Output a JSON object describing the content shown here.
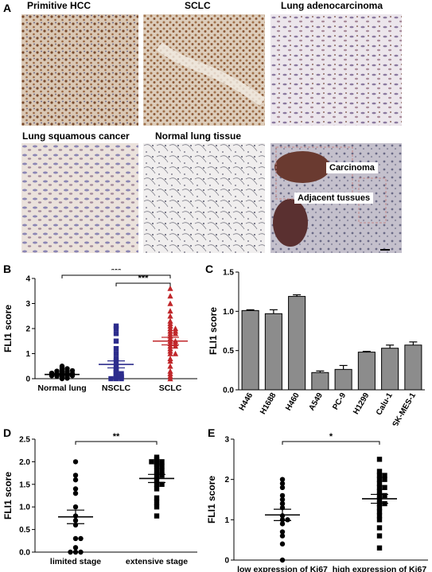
{
  "panels": {
    "a": "A",
    "b": "B",
    "c": "C",
    "d": "D",
    "e": "E"
  },
  "images": {
    "titles": [
      "Primitive HCC",
      "SCLC",
      "Lung adenocarcinoma",
      "Lung squamous cancer",
      "Normal lung tissue"
    ],
    "carcinoma_label": "Carcinoma",
    "adjacent_label": "Adjacent tussues"
  },
  "colors": {
    "red": "#c0262a",
    "navy": "#2c2c8c",
    "black": "#000000",
    "bar_gray": "#8c8c8c"
  },
  "chart_data": [
    {
      "id": "B",
      "type": "scatter",
      "ylabel": "FLI1 score",
      "ylim": [
        0,
        4
      ],
      "yticks": [
        "0",
        "1",
        "2",
        "3",
        "4"
      ],
      "categories": [
        "Normal lung",
        "NSCLC",
        "SCLC"
      ],
      "significance": [
        {
          "from": "Normal lung",
          "to": "SCLC",
          "label": "***"
        },
        {
          "from": "NSCLC",
          "to": "SCLC",
          "label": "***"
        }
      ],
      "groups": [
        {
          "category": "Normal lung",
          "marker": "circle",
          "color": "#000000",
          "mean": 0.17,
          "sem": 0.03,
          "values": [
            0.0,
            0.02,
            0.05,
            0.05,
            0.08,
            0.1,
            0.1,
            0.12,
            0.12,
            0.15,
            0.15,
            0.15,
            0.18,
            0.18,
            0.2,
            0.2,
            0.22,
            0.25,
            0.25,
            0.28,
            0.3,
            0.3,
            0.32,
            0.35,
            0.38,
            0.4,
            0.45,
            0.5
          ]
        },
        {
          "category": "NSCLC",
          "marker": "square",
          "color": "#2c2c8c",
          "mean": 0.57,
          "sem": 0.14,
          "values": [
            0.0,
            0.0,
            0.0,
            0.05,
            0.05,
            0.1,
            0.1,
            0.15,
            0.2,
            0.2,
            0.25,
            0.3,
            0.35,
            0.4,
            0.5,
            0.7,
            0.8,
            1.0,
            1.2,
            1.5,
            1.8,
            2.0,
            2.1
          ]
        },
        {
          "category": "SCLC",
          "marker": "triangle",
          "color": "#c0262a",
          "mean": 1.5,
          "sem": 0.15,
          "values": [
            0.0,
            0.1,
            0.2,
            0.3,
            0.5,
            0.7,
            0.8,
            1.0,
            1.0,
            1.1,
            1.2,
            1.3,
            1.3,
            1.4,
            1.4,
            1.5,
            1.5,
            1.6,
            1.7,
            1.8,
            1.8,
            1.9,
            1.9,
            2.0,
            2.0,
            2.1,
            2.2,
            2.3,
            2.5,
            2.7,
            3.0,
            3.3,
            3.6
          ]
        }
      ]
    },
    {
      "id": "C",
      "type": "bar",
      "ylabel": "FLI1  score",
      "ylim": [
        0,
        1.5
      ],
      "yticks": [
        "0.0",
        "0.5",
        "1.0",
        "1.5"
      ],
      "categories": [
        "H446",
        "H1688",
        "H460",
        "A549",
        "PC-9",
        "H1299",
        "Calu-1",
        "SK-MES-1"
      ],
      "values": [
        1.01,
        0.97,
        1.19,
        0.22,
        0.26,
        0.48,
        0.53,
        0.57
      ],
      "errors": [
        0.01,
        0.05,
        0.02,
        0.02,
        0.05,
        0.01,
        0.04,
        0.04
      ]
    },
    {
      "id": "D",
      "type": "scatter",
      "ylabel": "FLI1  score",
      "ylim": [
        0,
        2.5
      ],
      "yticks": [
        "0.0",
        "0.5",
        "1.0",
        "1.5",
        "2.0",
        "2.5"
      ],
      "categories": [
        "limited stage",
        "extensive stage"
      ],
      "significance": [
        {
          "from": "limited stage",
          "to": "extensive stage",
          "label": "**"
        }
      ],
      "groups": [
        {
          "category": "limited stage",
          "marker": "circle",
          "color": "#000000",
          "mean": 0.78,
          "sem": 0.15,
          "values": [
            0.0,
            0.0,
            0.0,
            0.1,
            0.3,
            0.3,
            0.6,
            0.7,
            0.8,
            1.0,
            1.3,
            1.4,
            1.6,
            1.7,
            2.0
          ]
        },
        {
          "category": "extensive stage",
          "marker": "square",
          "color": "#000000",
          "mean": 1.63,
          "sem": 0.09,
          "values": [
            0.8,
            1.0,
            1.1,
            1.2,
            1.4,
            1.5,
            1.5,
            1.6,
            1.7,
            1.7,
            1.8,
            1.8,
            1.9,
            1.9,
            1.95,
            2.0,
            2.0,
            2.0,
            2.05,
            2.1
          ]
        }
      ]
    },
    {
      "id": "E",
      "type": "scatter",
      "ylabel": "FLI1 score",
      "ylim": [
        0,
        3
      ],
      "yticks": [
        "0",
        "1",
        "2",
        "3"
      ],
      "categories": [
        "low expression of Ki67",
        "high expression of Ki67"
      ],
      "significance": [
        {
          "from": "low expression of Ki67",
          "to": "high expression of Ki67",
          "label": "*"
        }
      ],
      "groups": [
        {
          "category": "low expression of Ki67",
          "marker": "circle",
          "color": "#000000",
          "mean": 1.12,
          "sem": 0.14,
          "values": [
            0.0,
            0.4,
            0.6,
            0.7,
            0.9,
            1.0,
            1.0,
            1.1,
            1.3,
            1.4,
            1.5,
            1.6,
            1.8,
            1.9,
            2.0
          ]
        },
        {
          "category": "high expression of Ki67",
          "marker": "square",
          "color": "#000000",
          "mean": 1.52,
          "sem": 0.11,
          "values": [
            0.3,
            0.6,
            0.8,
            1.0,
            1.1,
            1.2,
            1.3,
            1.4,
            1.4,
            1.5,
            1.6,
            1.6,
            1.7,
            1.8,
            1.8,
            1.9,
            2.0,
            2.0,
            2.1,
            2.1,
            2.2,
            2.5
          ]
        }
      ]
    }
  ]
}
